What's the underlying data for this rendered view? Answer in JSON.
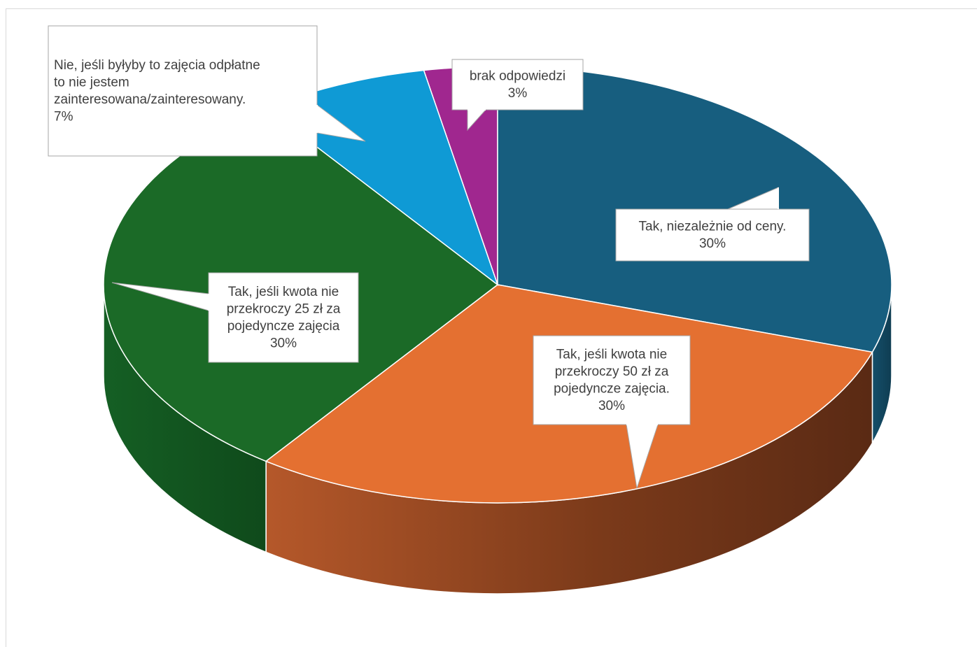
{
  "chart_data": {
    "type": "pie",
    "style": "3d",
    "legend": "none",
    "slices": [
      {
        "key": "brak",
        "value": 3,
        "color": "#a0278f",
        "label_lines": [
          "brak odpowiedzi",
          "3%"
        ]
      },
      {
        "key": "tak_niezaleznie",
        "value": 30,
        "color": "#175e7f",
        "label_lines": [
          "Tak, niezależnie od ceny.",
          "30%"
        ]
      },
      {
        "key": "tak_50",
        "value": 30,
        "color": "#e47031",
        "label_lines": [
          "Tak, jeśli kwota nie",
          "przekroczy 50 zł za",
          "pojedyncze zajęcia.",
          "30%"
        ]
      },
      {
        "key": "tak_25",
        "value": 30,
        "color": "#1b6a27",
        "label_lines": [
          "Tak, jeśli kwota nie",
          "przekroczy 25 zł za",
          "pojedyncze zajęcia",
          "30%"
        ]
      },
      {
        "key": "nie_odplatne",
        "value": 7,
        "color": "#0f9ad5",
        "label_lines": [
          "Nie, jeśli byłyby to zajęcia odpłatne",
          "to nie jestem",
          "zainteresowana/zainteresowany.",
          "7%"
        ]
      }
    ]
  }
}
